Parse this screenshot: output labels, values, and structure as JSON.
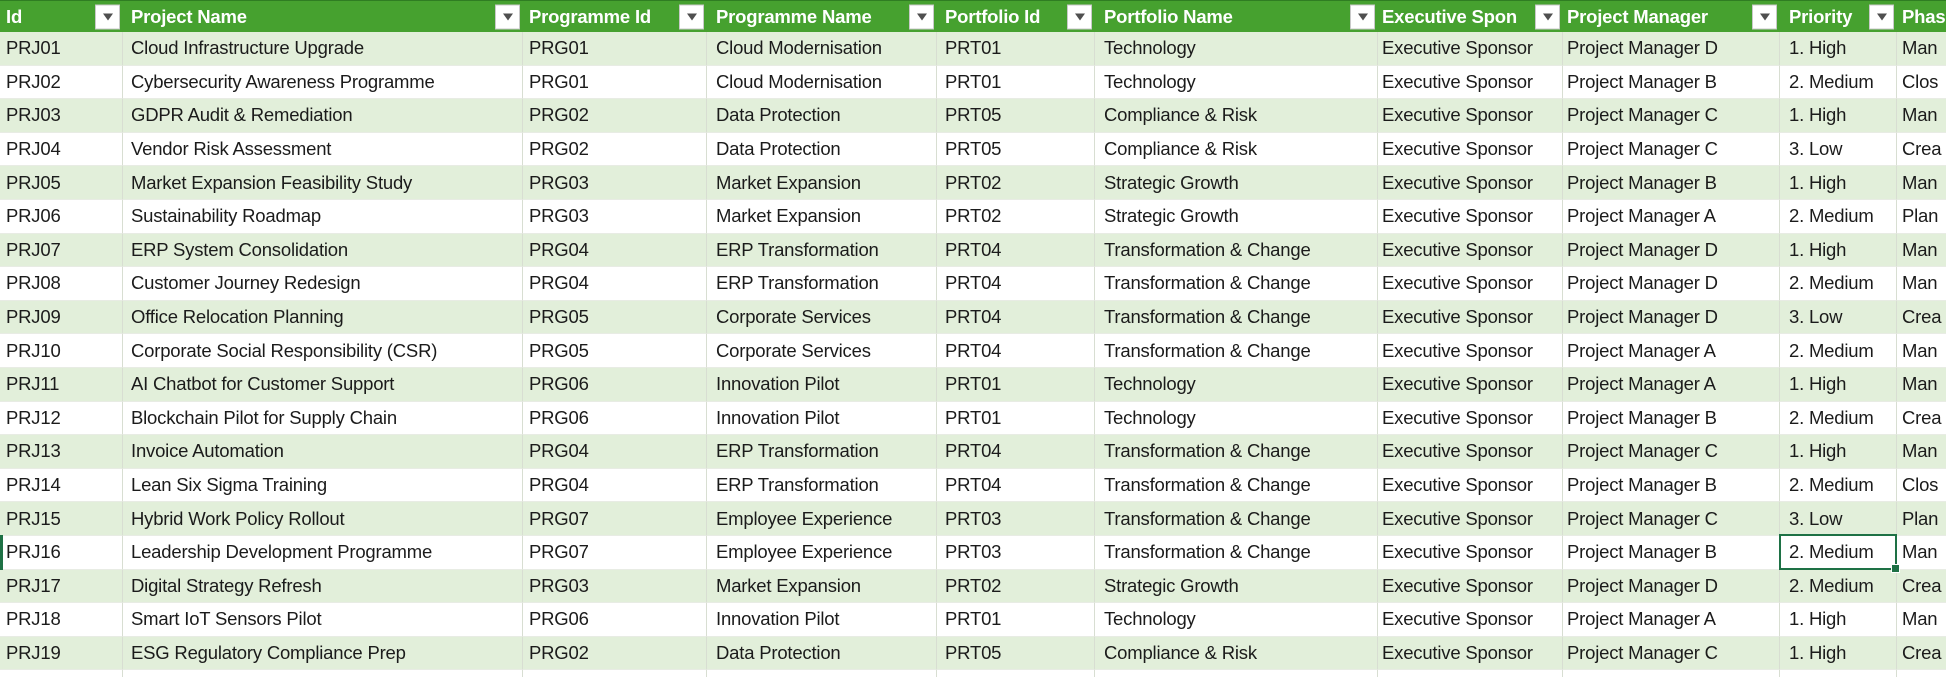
{
  "table": {
    "columns": [
      {
        "key": "id",
        "label": "Id",
        "filter": true
      },
      {
        "key": "project_name",
        "label": "Project Name",
        "filter": true
      },
      {
        "key": "programme_id",
        "label": "Programme Id",
        "filter": true
      },
      {
        "key": "programme_name",
        "label": "Programme Name",
        "filter": true
      },
      {
        "key": "portfolio_id",
        "label": "Portfolio Id",
        "filter": true
      },
      {
        "key": "portfolio_name",
        "label": "Portfolio Name",
        "filter": true
      },
      {
        "key": "executive_sponsor",
        "label": "Executive Spon",
        "filter": true
      },
      {
        "key": "project_manager",
        "label": "Project Manager",
        "filter": true
      },
      {
        "key": "priority",
        "label": "Priority",
        "filter": true
      },
      {
        "key": "phase",
        "label": "Phas",
        "filter": false
      }
    ],
    "rows": [
      {
        "id": "PRJ01",
        "project_name": "Cloud Infrastructure Upgrade",
        "programme_id": "PRG01",
        "programme_name": "Cloud Modernisation",
        "portfolio_id": "PRT01",
        "portfolio_name": "Technology",
        "executive_sponsor": "Executive Sponsor",
        "project_manager": "Project Manager D",
        "priority": "1. High",
        "phase": "Man"
      },
      {
        "id": "PRJ02",
        "project_name": "Cybersecurity Awareness Programme",
        "programme_id": "PRG01",
        "programme_name": "Cloud Modernisation",
        "portfolio_id": "PRT01",
        "portfolio_name": "Technology",
        "executive_sponsor": "Executive Sponsor",
        "project_manager": "Project Manager B",
        "priority": "2. Medium",
        "phase": "Clos"
      },
      {
        "id": "PRJ03",
        "project_name": "GDPR Audit & Remediation",
        "programme_id": "PRG02",
        "programme_name": "Data Protection",
        "portfolio_id": "PRT05",
        "portfolio_name": "Compliance & Risk",
        "executive_sponsor": "Executive Sponsor",
        "project_manager": "Project Manager C",
        "priority": "1. High",
        "phase": "Man"
      },
      {
        "id": "PRJ04",
        "project_name": "Vendor Risk Assessment",
        "programme_id": "PRG02",
        "programme_name": "Data Protection",
        "portfolio_id": "PRT05",
        "portfolio_name": "Compliance & Risk",
        "executive_sponsor": "Executive Sponsor",
        "project_manager": "Project Manager C",
        "priority": "3. Low",
        "phase": "Crea"
      },
      {
        "id": "PRJ05",
        "project_name": "Market Expansion Feasibility Study",
        "programme_id": "PRG03",
        "programme_name": "Market Expansion",
        "portfolio_id": "PRT02",
        "portfolio_name": "Strategic Growth",
        "executive_sponsor": "Executive Sponsor",
        "project_manager": "Project Manager B",
        "priority": "1. High",
        "phase": "Man"
      },
      {
        "id": "PRJ06",
        "project_name": "Sustainability Roadmap",
        "programme_id": "PRG03",
        "programme_name": "Market Expansion",
        "portfolio_id": "PRT02",
        "portfolio_name": "Strategic Growth",
        "executive_sponsor": "Executive Sponsor",
        "project_manager": "Project Manager A",
        "priority": "2. Medium",
        "phase": "Plan"
      },
      {
        "id": "PRJ07",
        "project_name": "ERP System Consolidation",
        "programme_id": "PRG04",
        "programme_name": "ERP Transformation",
        "portfolio_id": "PRT04",
        "portfolio_name": "Transformation & Change",
        "executive_sponsor": "Executive Sponsor",
        "project_manager": "Project Manager D",
        "priority": "1. High",
        "phase": "Man"
      },
      {
        "id": "PRJ08",
        "project_name": "Customer Journey Redesign",
        "programme_id": "PRG04",
        "programme_name": "ERP Transformation",
        "portfolio_id": "PRT04",
        "portfolio_name": "Transformation & Change",
        "executive_sponsor": "Executive Sponsor",
        "project_manager": "Project Manager D",
        "priority": "2. Medium",
        "phase": "Man"
      },
      {
        "id": "PRJ09",
        "project_name": "Office Relocation Planning",
        "programme_id": "PRG05",
        "programme_name": "Corporate Services",
        "portfolio_id": "PRT04",
        "portfolio_name": "Transformation & Change",
        "executive_sponsor": "Executive Sponsor",
        "project_manager": "Project Manager D",
        "priority": "3. Low",
        "phase": "Crea"
      },
      {
        "id": "PRJ10",
        "project_name": "Corporate Social Responsibility (CSR)",
        "programme_id": "PRG05",
        "programme_name": "Corporate Services",
        "portfolio_id": "PRT04",
        "portfolio_name": "Transformation & Change",
        "executive_sponsor": "Executive Sponsor",
        "project_manager": "Project Manager A",
        "priority": "2. Medium",
        "phase": "Man"
      },
      {
        "id": "PRJ11",
        "project_name": "AI Chatbot for Customer Support",
        "programme_id": "PRG06",
        "programme_name": "Innovation Pilot",
        "portfolio_id": "PRT01",
        "portfolio_name": "Technology",
        "executive_sponsor": "Executive Sponsor",
        "project_manager": "Project Manager A",
        "priority": "1. High",
        "phase": "Man"
      },
      {
        "id": "PRJ12",
        "project_name": "Blockchain Pilot for Supply Chain",
        "programme_id": "PRG06",
        "programme_name": "Innovation Pilot",
        "portfolio_id": "PRT01",
        "portfolio_name": "Technology",
        "executive_sponsor": "Executive Sponsor",
        "project_manager": "Project Manager B",
        "priority": "2. Medium",
        "phase": "Crea"
      },
      {
        "id": "PRJ13",
        "project_name": "Invoice Automation",
        "programme_id": "PRG04",
        "programme_name": "ERP Transformation",
        "portfolio_id": "PRT04",
        "portfolio_name": "Transformation & Change",
        "executive_sponsor": "Executive Sponsor",
        "project_manager": "Project Manager C",
        "priority": "1. High",
        "phase": "Man"
      },
      {
        "id": "PRJ14",
        "project_name": "Lean Six Sigma Training",
        "programme_id": "PRG04",
        "programme_name": "ERP Transformation",
        "portfolio_id": "PRT04",
        "portfolio_name": "Transformation & Change",
        "executive_sponsor": "Executive Sponsor",
        "project_manager": "Project Manager B",
        "priority": "2. Medium",
        "phase": "Clos"
      },
      {
        "id": "PRJ15",
        "project_name": "Hybrid Work Policy Rollout",
        "programme_id": "PRG07",
        "programme_name": "Employee Experience",
        "portfolio_id": "PRT03",
        "portfolio_name": "Transformation & Change",
        "executive_sponsor": "Executive Sponsor",
        "project_manager": "Project Manager C",
        "priority": "3. Low",
        "phase": "Plan"
      },
      {
        "id": "PRJ16",
        "project_name": "Leadership Development Programme",
        "programme_id": "PRG07",
        "programme_name": "Employee Experience",
        "portfolio_id": "PRT03",
        "portfolio_name": "Transformation & Change",
        "executive_sponsor": "Executive Sponsor",
        "project_manager": "Project Manager B",
        "priority": "2. Medium",
        "phase": "Man"
      },
      {
        "id": "PRJ17",
        "project_name": "Digital Strategy Refresh",
        "programme_id": "PRG03",
        "programme_name": "Market Expansion",
        "portfolio_id": "PRT02",
        "portfolio_name": "Strategic Growth",
        "executive_sponsor": "Executive Sponsor",
        "project_manager": "Project Manager D",
        "priority": "2. Medium",
        "phase": "Crea"
      },
      {
        "id": "PRJ18",
        "project_name": "Smart IoT Sensors Pilot",
        "programme_id": "PRG06",
        "programme_name": "Innovation Pilot",
        "portfolio_id": "PRT01",
        "portfolio_name": "Technology",
        "executive_sponsor": "Executive Sponsor",
        "project_manager": "Project Manager A",
        "priority": "1. High",
        "phase": "Man"
      },
      {
        "id": "PRJ19",
        "project_name": "ESG Regulatory Compliance Prep",
        "programme_id": "PRG02",
        "programme_name": "Data Protection",
        "portfolio_id": "PRT05",
        "portfolio_name": "Compliance & Risk",
        "executive_sponsor": "Executive Sponsor",
        "project_manager": "Project Manager C",
        "priority": "1. High",
        "phase": "Crea"
      }
    ],
    "selection": {
      "row_id": "PRJ16",
      "column_key": "priority",
      "value": "2. Medium"
    }
  },
  "colors": {
    "header_green": "#46A12F",
    "band_green": "#E2EFDA",
    "selection_green": "#1E7145"
  }
}
